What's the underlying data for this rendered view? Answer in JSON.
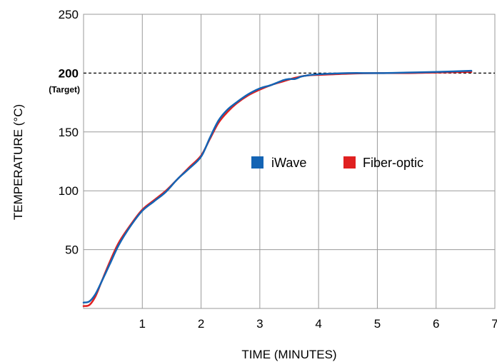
{
  "chart_data": {
    "type": "line",
    "xlabel": "TIME (MINUTES)",
    "ylabel": "TEMPERATURE (°C)",
    "xlim": [
      0,
      7
    ],
    "ylim": [
      0,
      250
    ],
    "x_ticks": [
      "1",
      "2",
      "3",
      "4",
      "5",
      "6",
      "7"
    ],
    "y_ticks": [
      "50",
      "100",
      "150",
      "200",
      "250"
    ],
    "grid": true,
    "legend_position": "center-right",
    "target": {
      "value": 200,
      "label": "200",
      "note": "(Target)"
    },
    "series": [
      {
        "name": "iWave",
        "color": "#1464b4",
        "x": [
          0,
          0.1,
          0.2,
          0.3,
          0.45,
          0.6,
          0.8,
          1.0,
          1.2,
          1.4,
          1.6,
          1.8,
          2.0,
          2.15,
          2.3,
          2.45,
          2.6,
          2.8,
          3.0,
          3.2,
          3.4,
          3.5,
          3.6,
          3.7,
          3.8,
          4.0,
          4.5,
          5.0,
          5.5,
          6.0,
          6.6
        ],
        "y": [
          5,
          6,
          12,
          22,
          38,
          54,
          70,
          83,
          91,
          99,
          110,
          119,
          129,
          145,
          160,
          169,
          175,
          182,
          187,
          190,
          194,
          195,
          195,
          197,
          198,
          199,
          200,
          200,
          200.5,
          201,
          202
        ]
      },
      {
        "name": "Fiber-optic",
        "color": "#e02020",
        "x": [
          0,
          0.1,
          0.2,
          0.3,
          0.45,
          0.6,
          0.8,
          1.0,
          1.2,
          1.4,
          1.6,
          1.8,
          2.0,
          2.15,
          2.3,
          2.45,
          2.6,
          2.8,
          3.0,
          3.2,
          3.4,
          3.6,
          3.8,
          4.0,
          4.5,
          5.0,
          5.5,
          6.0,
          6.6
        ],
        "y": [
          2,
          3,
          10,
          22,
          40,
          56,
          71,
          84,
          92,
          100,
          110,
          120,
          130,
          144,
          158,
          167,
          174,
          181,
          186,
          190,
          193,
          196,
          198,
          198.5,
          199.5,
          200,
          200,
          200.5,
          201
        ]
      }
    ]
  }
}
